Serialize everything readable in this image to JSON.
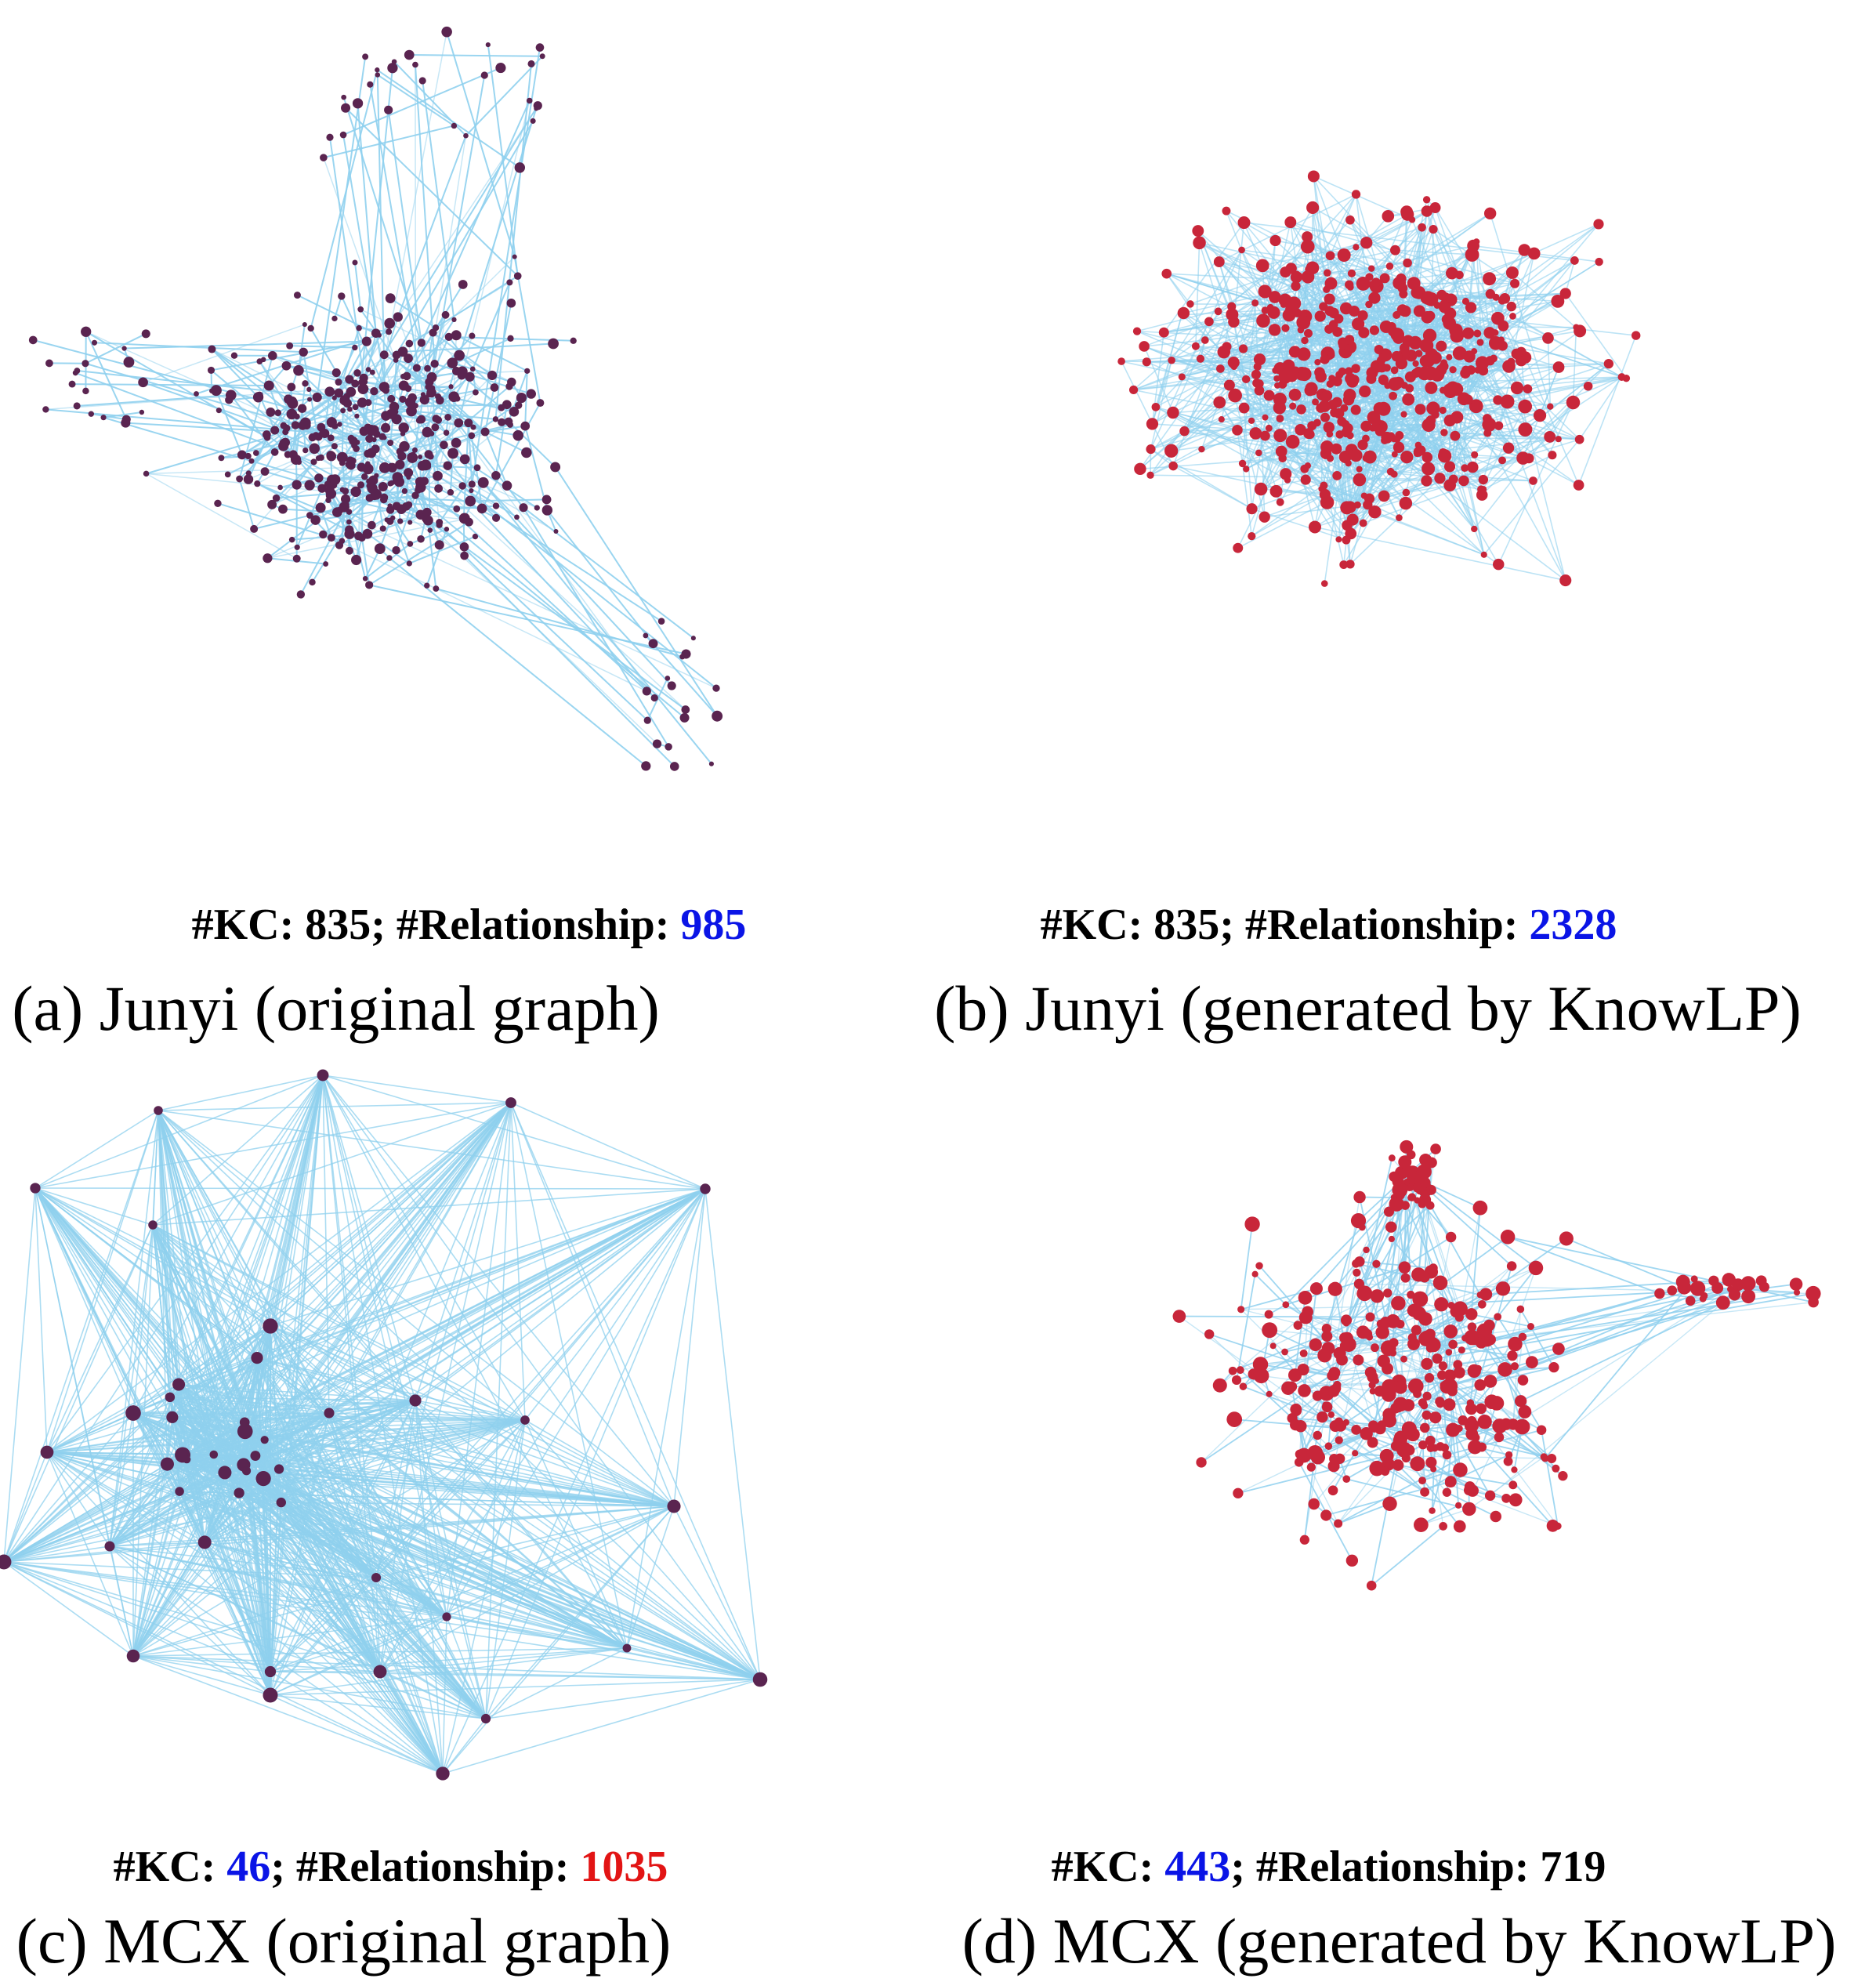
{
  "colors": {
    "edge": "#8fd0ee",
    "node_original": "#5a2450",
    "node_generated": "#c8263a",
    "highlight_blue": "#0a14e6",
    "highlight_red": "#e21414"
  },
  "panels": [
    {
      "id": "a",
      "stats": {
        "kc_label": "#KC:",
        "kc_value": "835",
        "sep": ";",
        "rel_label": "#Relationship:",
        "rel_value": "985"
      },
      "caption": "(a) Junyi (original graph)",
      "graph": {
        "nodes": 835,
        "edges": 985,
        "style": "original"
      }
    },
    {
      "id": "b",
      "stats": {
        "kc_label": "#KC:",
        "kc_value": "835",
        "sep": ";",
        "rel_label": "#Relationship:",
        "rel_value": "2328"
      },
      "caption": "(b) Junyi (generated by KnowLP)",
      "graph": {
        "nodes": 835,
        "edges": 2328,
        "style": "generated"
      }
    },
    {
      "id": "c",
      "stats": {
        "kc_label": "#KC:",
        "kc_value": "46",
        "sep": ";",
        "rel_label": "#Relationship:",
        "rel_value": "1035"
      },
      "caption": "(c) MCX (original graph)",
      "graph": {
        "nodes": 46,
        "edges": 1035,
        "style": "original"
      }
    },
    {
      "id": "d",
      "stats": {
        "kc_label": "#KC:",
        "kc_value": "443",
        "sep": ";",
        "rel_label": "#Relationship:",
        "rel_value": "719"
      },
      "caption": "(d) MCX (generated by KnowLP)",
      "graph": {
        "nodes": 443,
        "edges": 719,
        "style": "generated"
      }
    }
  ]
}
